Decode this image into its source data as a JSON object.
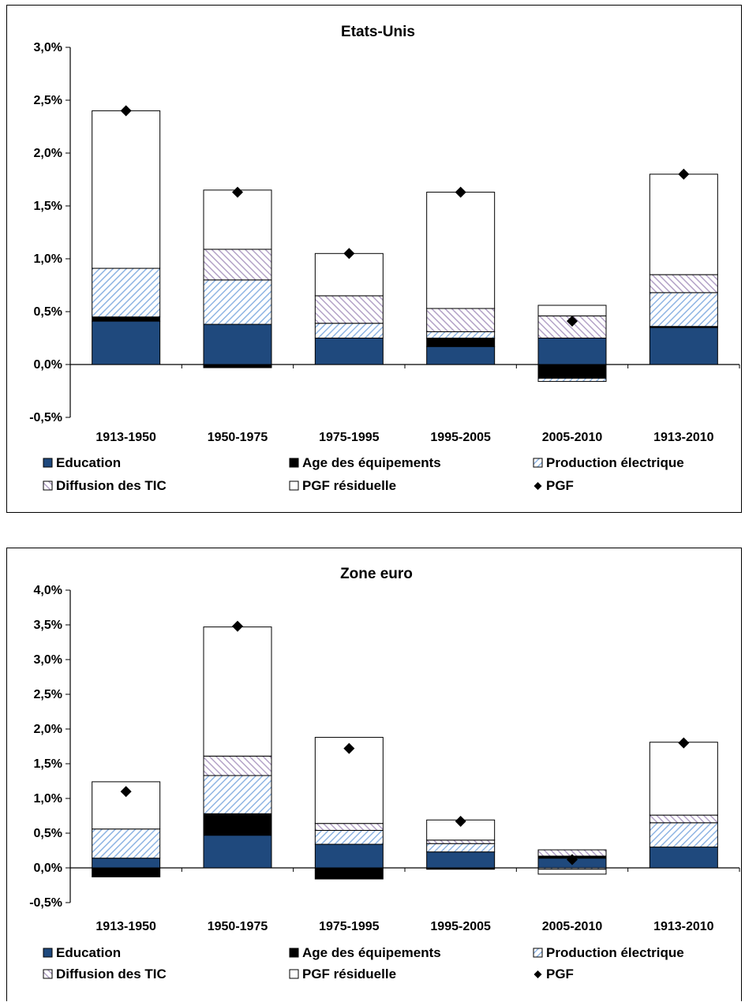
{
  "colors": {
    "education": "#1f497d",
    "age": "#000000",
    "production": "#8eb4e3",
    "tic": "#b3a2c7",
    "residuelle": "#ffffff",
    "pgf": "#000000"
  },
  "legend": [
    {
      "key": "education",
      "label": "Education",
      "swatch": "solid-blue"
    },
    {
      "key": "age",
      "label": "Age des équipements",
      "swatch": "solid-black"
    },
    {
      "key": "production",
      "label": "Production électrique",
      "swatch": "hatch-blue"
    },
    {
      "key": "tic",
      "label": "Diffusion des TIC",
      "swatch": "hatch-purple"
    },
    {
      "key": "residuelle",
      "label": "PGF résiduelle",
      "swatch": "white"
    },
    {
      "key": "pgf",
      "label": "PGF",
      "swatch": "diamond"
    }
  ],
  "chart_data": [
    {
      "type": "bar",
      "stacked": true,
      "title": "Etats-Unis",
      "categories": [
        "1913-1950",
        "1950-1975",
        "1975-1995",
        "1995-2005",
        "2005-2010",
        "1913-2010"
      ],
      "ylim": [
        -0.5,
        3.0
      ],
      "yticks": [
        -0.5,
        0.0,
        0.5,
        1.0,
        1.5,
        2.0,
        2.5,
        3.0
      ],
      "ytick_labels": [
        "-0,5%",
        "0,0%",
        "0,5%",
        "1,0%",
        "1,5%",
        "2,0%",
        "2,5%",
        "3,0%"
      ],
      "series": [
        {
          "name": "Education",
          "key": "education",
          "values": [
            0.41,
            0.38,
            0.25,
            0.17,
            0.25,
            0.35
          ]
        },
        {
          "name": "Age des équipements",
          "key": "age",
          "values": [
            0.04,
            -0.03,
            0.0,
            0.08,
            -0.13,
            0.01
          ]
        },
        {
          "name": "Production électrique",
          "key": "production",
          "values": [
            0.46,
            0.42,
            0.14,
            0.06,
            -0.03,
            0.32
          ]
        },
        {
          "name": "Diffusion des TIC",
          "key": "tic",
          "values": [
            0.0,
            0.29,
            0.26,
            0.22,
            0.21,
            0.17
          ]
        },
        {
          "name": "PGF résiduelle",
          "key": "residuelle",
          "values": [
            1.49,
            0.56,
            0.4,
            1.1,
            0.1,
            0.95
          ]
        }
      ],
      "pgf": {
        "name": "PGF",
        "values": [
          2.4,
          1.63,
          1.05,
          1.63,
          0.41,
          1.8
        ]
      }
    },
    {
      "type": "bar",
      "stacked": true,
      "title": "Zone euro",
      "categories": [
        "1913-1950",
        "1950-1975",
        "1975-1995",
        "1995-2005",
        "2005-2010",
        "1913-2010"
      ],
      "ylim": [
        -0.5,
        4.0
      ],
      "yticks": [
        -0.5,
        0.0,
        0.5,
        1.0,
        1.5,
        2.0,
        2.5,
        3.0,
        3.5,
        4.0
      ],
      "ytick_labels": [
        "-0,5%",
        "0,0%",
        "0,5%",
        "1,0%",
        "1,5%",
        "2,0%",
        "2,5%",
        "3,0%",
        "3,5%",
        "4,0%"
      ],
      "series": [
        {
          "name": "Education",
          "key": "education",
          "values": [
            0.14,
            0.47,
            0.34,
            0.23,
            0.14,
            0.3
          ]
        },
        {
          "name": "Age des équipements",
          "key": "age",
          "values": [
            -0.13,
            0.31,
            -0.16,
            -0.02,
            0.03,
            0.0
          ]
        },
        {
          "name": "Production électrique",
          "key": "production",
          "values": [
            0.42,
            0.55,
            0.2,
            0.12,
            -0.02,
            0.35
          ]
        },
        {
          "name": "Diffusion des TIC",
          "key": "tic",
          "values": [
            0.0,
            0.28,
            0.1,
            0.05,
            0.09,
            0.11
          ]
        },
        {
          "name": "PGF résiduelle",
          "key": "residuelle",
          "values": [
            0.68,
            1.86,
            1.24,
            0.29,
            -0.07,
            1.05
          ]
        }
      ],
      "pgf": {
        "name": "PGF",
        "values": [
          1.1,
          3.48,
          1.72,
          0.67,
          0.12,
          1.8
        ]
      }
    }
  ]
}
